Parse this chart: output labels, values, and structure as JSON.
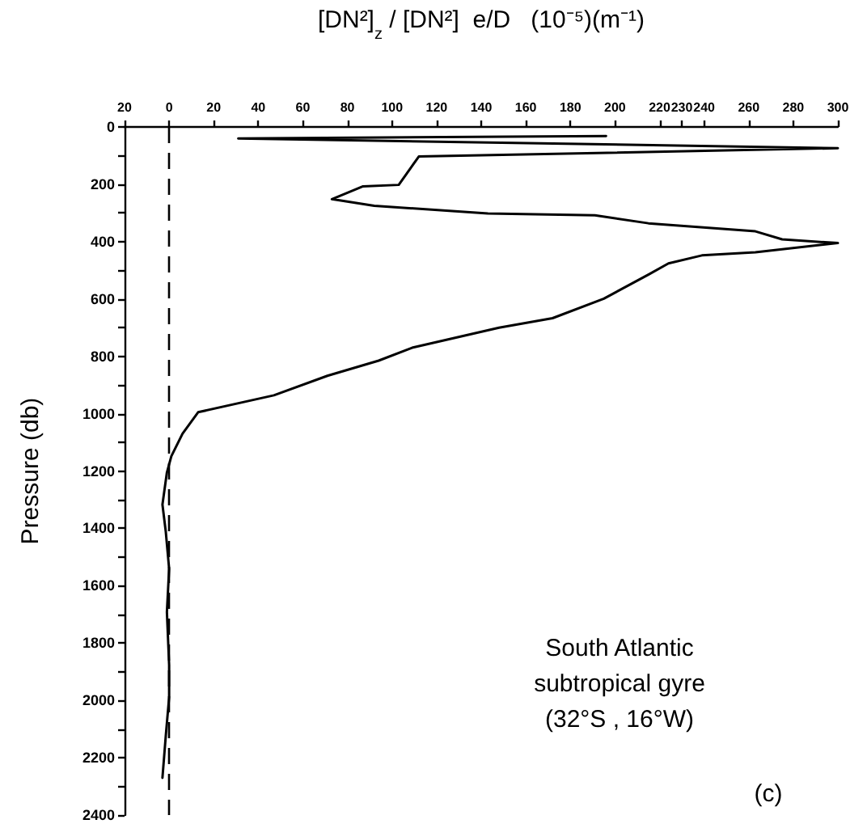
{
  "chart_data": {
    "type": "line",
    "xlabel": "[DN²]$_{z}$ / [DN²]  e/D   (10⁻⁵)(m⁻¹)",
    "ylabel": "Pressure (db)",
    "annotations": [
      "South Atlantic\nsubtropical gyre\n(32°S , 16°W)",
      "(c)"
    ],
    "x": [
      196,
      31,
      300,
      112,
      103,
      87,
      73,
      92,
      143,
      191,
      215,
      263,
      275,
      300,
      263,
      239,
      224,
      215,
      195,
      172,
      148,
      109,
      94,
      71,
      47,
      13,
      6,
      1,
      -1,
      -3,
      -1.5,
      0,
      -1,
      0,
      0,
      -1.5,
      -3
    ],
    "values": [
      32,
      40,
      74,
      103,
      202,
      207,
      252,
      275,
      302,
      308,
      336,
      364,
      392,
      405,
      437,
      448,
      476,
      515,
      599,
      667,
      700,
      770,
      815,
      868,
      936,
      995,
      1070,
      1148,
      1205,
      1317,
      1412,
      1541,
      1692,
      1877,
      1989,
      2123,
      2270
    ],
    "color": "#000000",
    "marker": "none",
    "xlim": [
      -20,
      300
    ],
    "xticks": [
      {
        "value": -20,
        "label": "20"
      },
      0,
      20,
      40,
      60,
      80,
      100,
      120,
      140,
      160,
      180,
      200,
      220,
      230,
      240,
      260,
      280,
      300
    ],
    "ylim": [
      2400,
      0
    ],
    "yticks": [
      0,
      {
        "value": 100,
        "label": null
      },
      200,
      {
        "value": 300,
        "label": null
      },
      400,
      {
        "value": 500,
        "label": null
      },
      600,
      {
        "value": 700,
        "label": null
      },
      800,
      {
        "value": 900,
        "label": null
      },
      1000,
      {
        "value": 1100,
        "label": null
      },
      1200,
      {
        "value": 1300,
        "label": null
      },
      1400,
      {
        "value": 1500,
        "label": null
      },
      1600,
      {
        "value": 1700,
        "label": null
      },
      1800,
      {
        "value": 1900,
        "label": null
      },
      2000,
      {
        "value": 2100,
        "label": null
      },
      2200,
      {
        "value": 2300,
        "label": null
      },
      2400
    ],
    "ref_lines": [
      {
        "axis": "x",
        "value": 0,
        "color": "#000000",
        "line_style": "dashed"
      }
    ]
  }
}
